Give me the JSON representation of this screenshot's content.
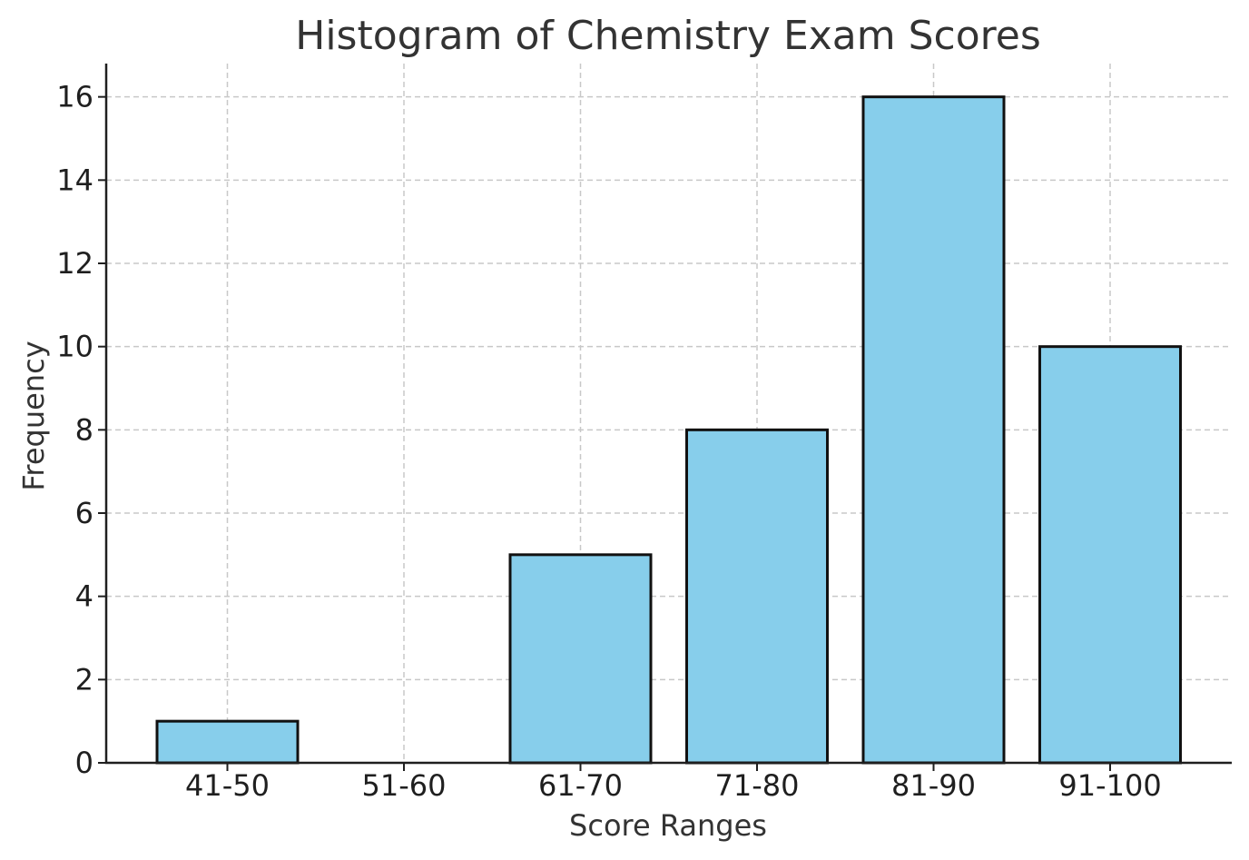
{
  "chart_data": {
    "type": "bar",
    "title": "Histogram of Chemistry Exam Scores",
    "xlabel": "Score Ranges",
    "ylabel": "Frequency",
    "categories": [
      "41-50",
      "51-60",
      "61-70",
      "71-80",
      "81-90",
      "91-100"
    ],
    "values": [
      1,
      0,
      5,
      8,
      16,
      10
    ],
    "ylim": [
      0,
      16.8
    ],
    "yticks": [
      0,
      2,
      4,
      6,
      8,
      10,
      12,
      14,
      16
    ],
    "grid": true,
    "bar_color": "#87CEEB",
    "edge_color": "#111111"
  }
}
